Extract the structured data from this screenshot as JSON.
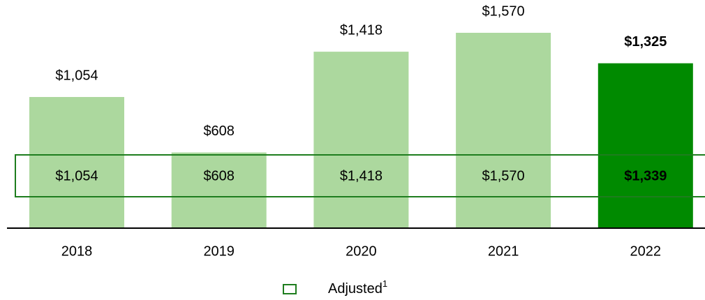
{
  "chart_data": {
    "type": "bar",
    "categories": [
      "2018",
      "2019",
      "2020",
      "2021",
      "2022"
    ],
    "values": [
      1054,
      608,
      1418,
      1570,
      1325
    ],
    "value_labels": [
      "$1,054",
      "$608",
      "$1,418",
      "$1,570",
      "$1,325"
    ],
    "color": "#acd89e",
    "highlight_color": "#008a00",
    "highlight_index": 4,
    "adjusted": {
      "name": "Adjusted",
      "footnote": "1",
      "color": "#1e7d1e",
      "values": [
        1054,
        608,
        1418,
        1570,
        1339
      ],
      "value_labels": [
        "$1,054",
        "$608",
        "$1,418",
        "$1,570",
        "$1,339"
      ]
    }
  }
}
